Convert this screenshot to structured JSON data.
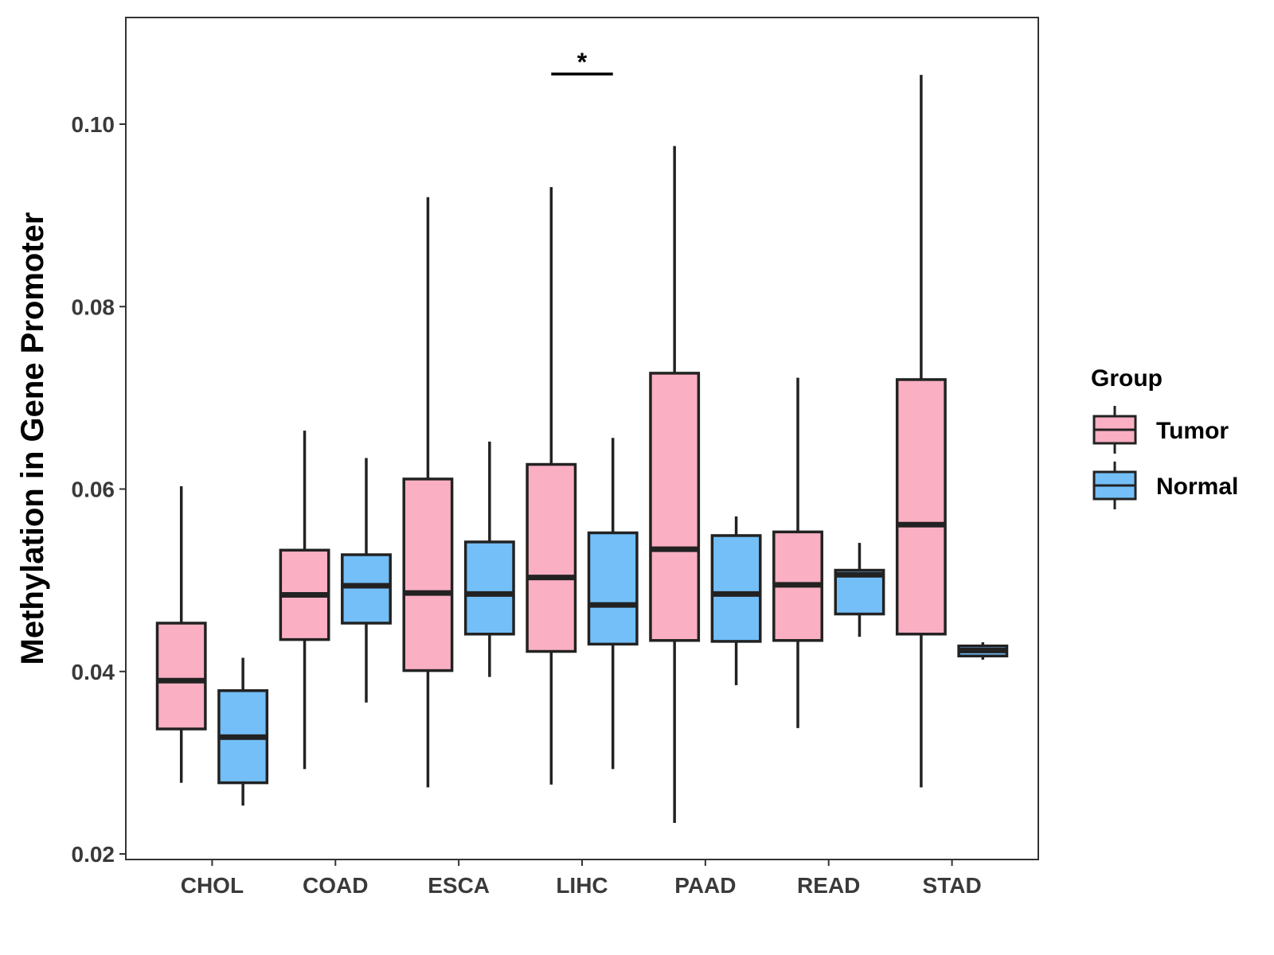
{
  "chart_data": {
    "type": "boxplot",
    "title": "",
    "xlabel": "",
    "ylabel": "Methylation in Gene Promoter",
    "ylim": [
      0.019,
      0.112
    ],
    "yticks": [
      0.02,
      0.04,
      0.06,
      0.08,
      0.1
    ],
    "ytick_labels": [
      "0.02",
      "0.04",
      "0.06",
      "0.08",
      "0.10"
    ],
    "categories": [
      "CHOL",
      "COAD",
      "ESCA",
      "LIHC",
      "PAAD",
      "READ",
      "STAD"
    ],
    "legend": {
      "title": "Group",
      "position": "right",
      "entries": [
        {
          "name": "Tumor",
          "color": "#FAAFC2"
        },
        {
          "name": "Normal",
          "color": "#74BFF8"
        }
      ]
    },
    "series": [
      {
        "name": "Tumor",
        "color": "#FAAFC2",
        "boxes": [
          {
            "category": "CHOL",
            "min": 0.0278,
            "q1": 0.0337,
            "median": 0.039,
            "q3": 0.0453,
            "max": 0.0603
          },
          {
            "category": "COAD",
            "min": 0.0293,
            "q1": 0.0435,
            "median": 0.0484,
            "q3": 0.0533,
            "max": 0.0664
          },
          {
            "category": "ESCA",
            "min": 0.0273,
            "q1": 0.0401,
            "median": 0.0486,
            "q3": 0.0611,
            "max": 0.092
          },
          {
            "category": "LIHC",
            "min": 0.0276,
            "q1": 0.0422,
            "median": 0.0503,
            "q3": 0.0627,
            "max": 0.0931
          },
          {
            "category": "PAAD",
            "min": 0.0234,
            "q1": 0.0434,
            "median": 0.0534,
            "q3": 0.0727,
            "max": 0.0976
          },
          {
            "category": "READ",
            "min": 0.0338,
            "q1": 0.0434,
            "median": 0.0495,
            "q3": 0.0553,
            "max": 0.0722
          },
          {
            "category": "STAD",
            "min": 0.0273,
            "q1": 0.0441,
            "median": 0.0561,
            "q3": 0.072,
            "max": 0.1054
          }
        ]
      },
      {
        "name": "Normal",
        "color": "#74BFF8",
        "boxes": [
          {
            "category": "CHOL",
            "min": 0.0253,
            "q1": 0.0278,
            "median": 0.0328,
            "q3": 0.0379,
            "max": 0.0415
          },
          {
            "category": "COAD",
            "min": 0.0366,
            "q1": 0.0453,
            "median": 0.0494,
            "q3": 0.0528,
            "max": 0.0634
          },
          {
            "category": "ESCA",
            "min": 0.0394,
            "q1": 0.0441,
            "median": 0.0485,
            "q3": 0.0542,
            "max": 0.0652
          },
          {
            "category": "LIHC",
            "min": 0.0293,
            "q1": 0.043,
            "median": 0.0473,
            "q3": 0.0552,
            "max": 0.0656
          },
          {
            "category": "PAAD",
            "min": 0.0385,
            "q1": 0.0433,
            "median": 0.0485,
            "q3": 0.0549,
            "max": 0.057
          },
          {
            "category": "READ",
            "min": 0.0438,
            "q1": 0.0463,
            "median": 0.0506,
            "q3": 0.0511,
            "max": 0.0541
          },
          {
            "category": "STAD",
            "min": 0.0413,
            "q1": 0.0417,
            "median": 0.0423,
            "q3": 0.0428,
            "max": 0.0432
          }
        ]
      }
    ],
    "annotations": [
      {
        "category": "LIHC",
        "text": "*",
        "y": 0.1055
      }
    ]
  }
}
